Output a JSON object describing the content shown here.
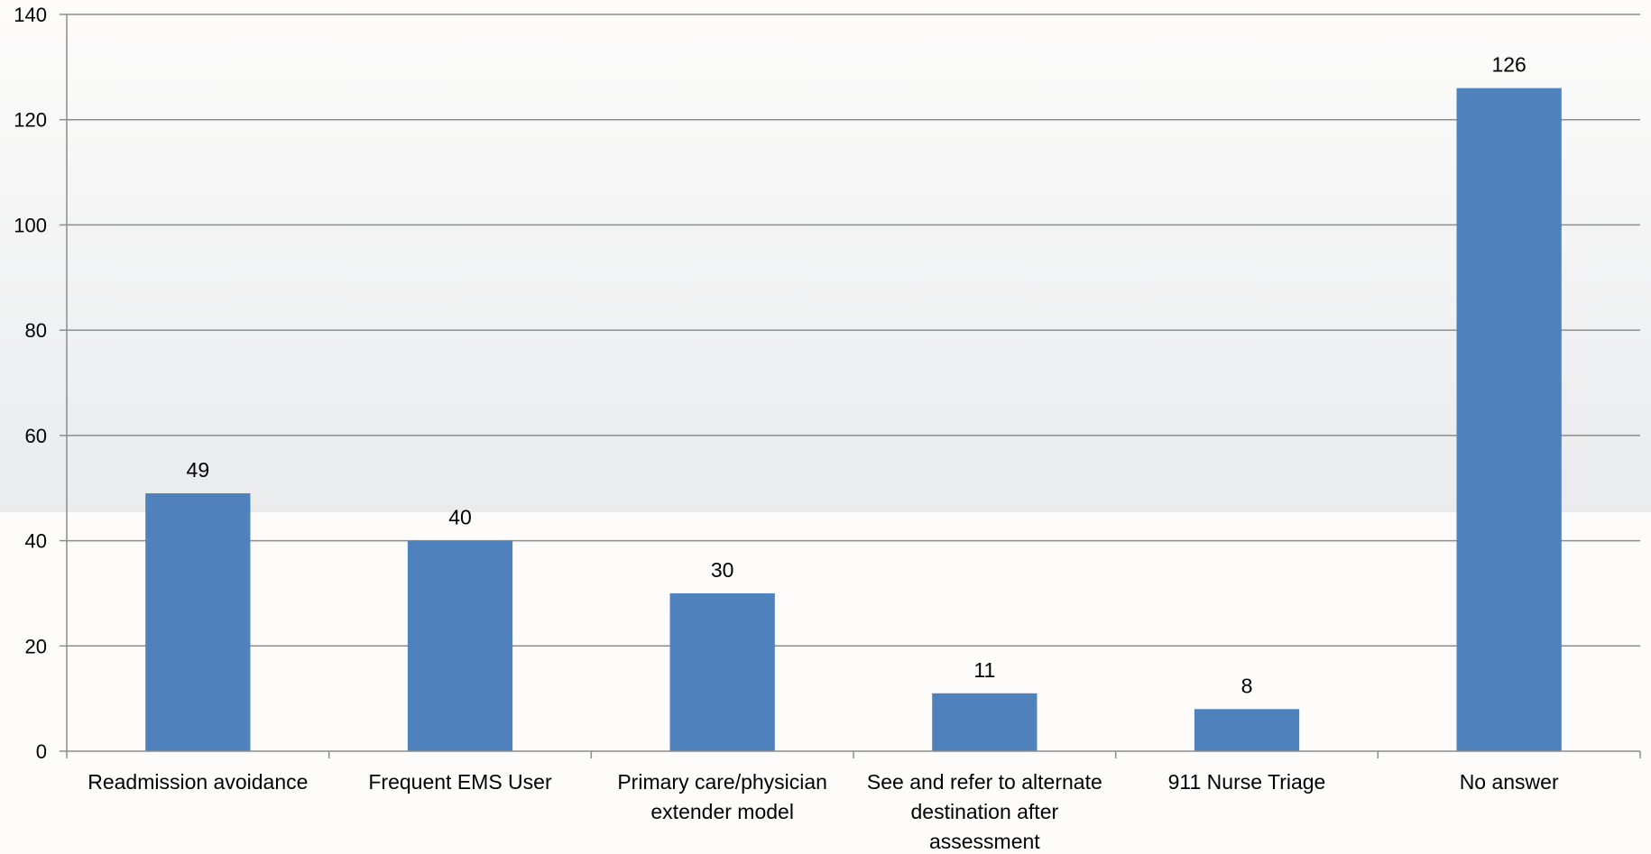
{
  "chart_data": {
    "type": "bar",
    "title": "",
    "xlabel": "",
    "ylabel": "",
    "categories": [
      [
        "Readmission avoidance"
      ],
      [
        "Frequent EMS User"
      ],
      [
        "Primary care/physician",
        "extender model"
      ],
      [
        "See and refer to alternate",
        "destination after",
        "assessment"
      ],
      [
        "911 Nurse Triage"
      ],
      [
        "No answer"
      ]
    ],
    "values": [
      49,
      40,
      30,
      11,
      8,
      126
    ],
    "data_labels": [
      "49",
      "40",
      "30",
      "11",
      "8",
      "126"
    ],
    "ylim": [
      0,
      140
    ],
    "yticks": [
      0,
      20,
      40,
      60,
      80,
      100,
      120,
      140
    ],
    "ytick_labels": [
      "0",
      "20",
      "40",
      "60",
      "80",
      "100",
      "120",
      "140"
    ],
    "grid": true,
    "legend": "none",
    "colors": {
      "bar": "#4f81bd",
      "grid": "#8c8c8c",
      "axis": "#8c8c8c",
      "band_top": "#fdfcfb",
      "band_bottom": "#e9ebed"
    }
  }
}
